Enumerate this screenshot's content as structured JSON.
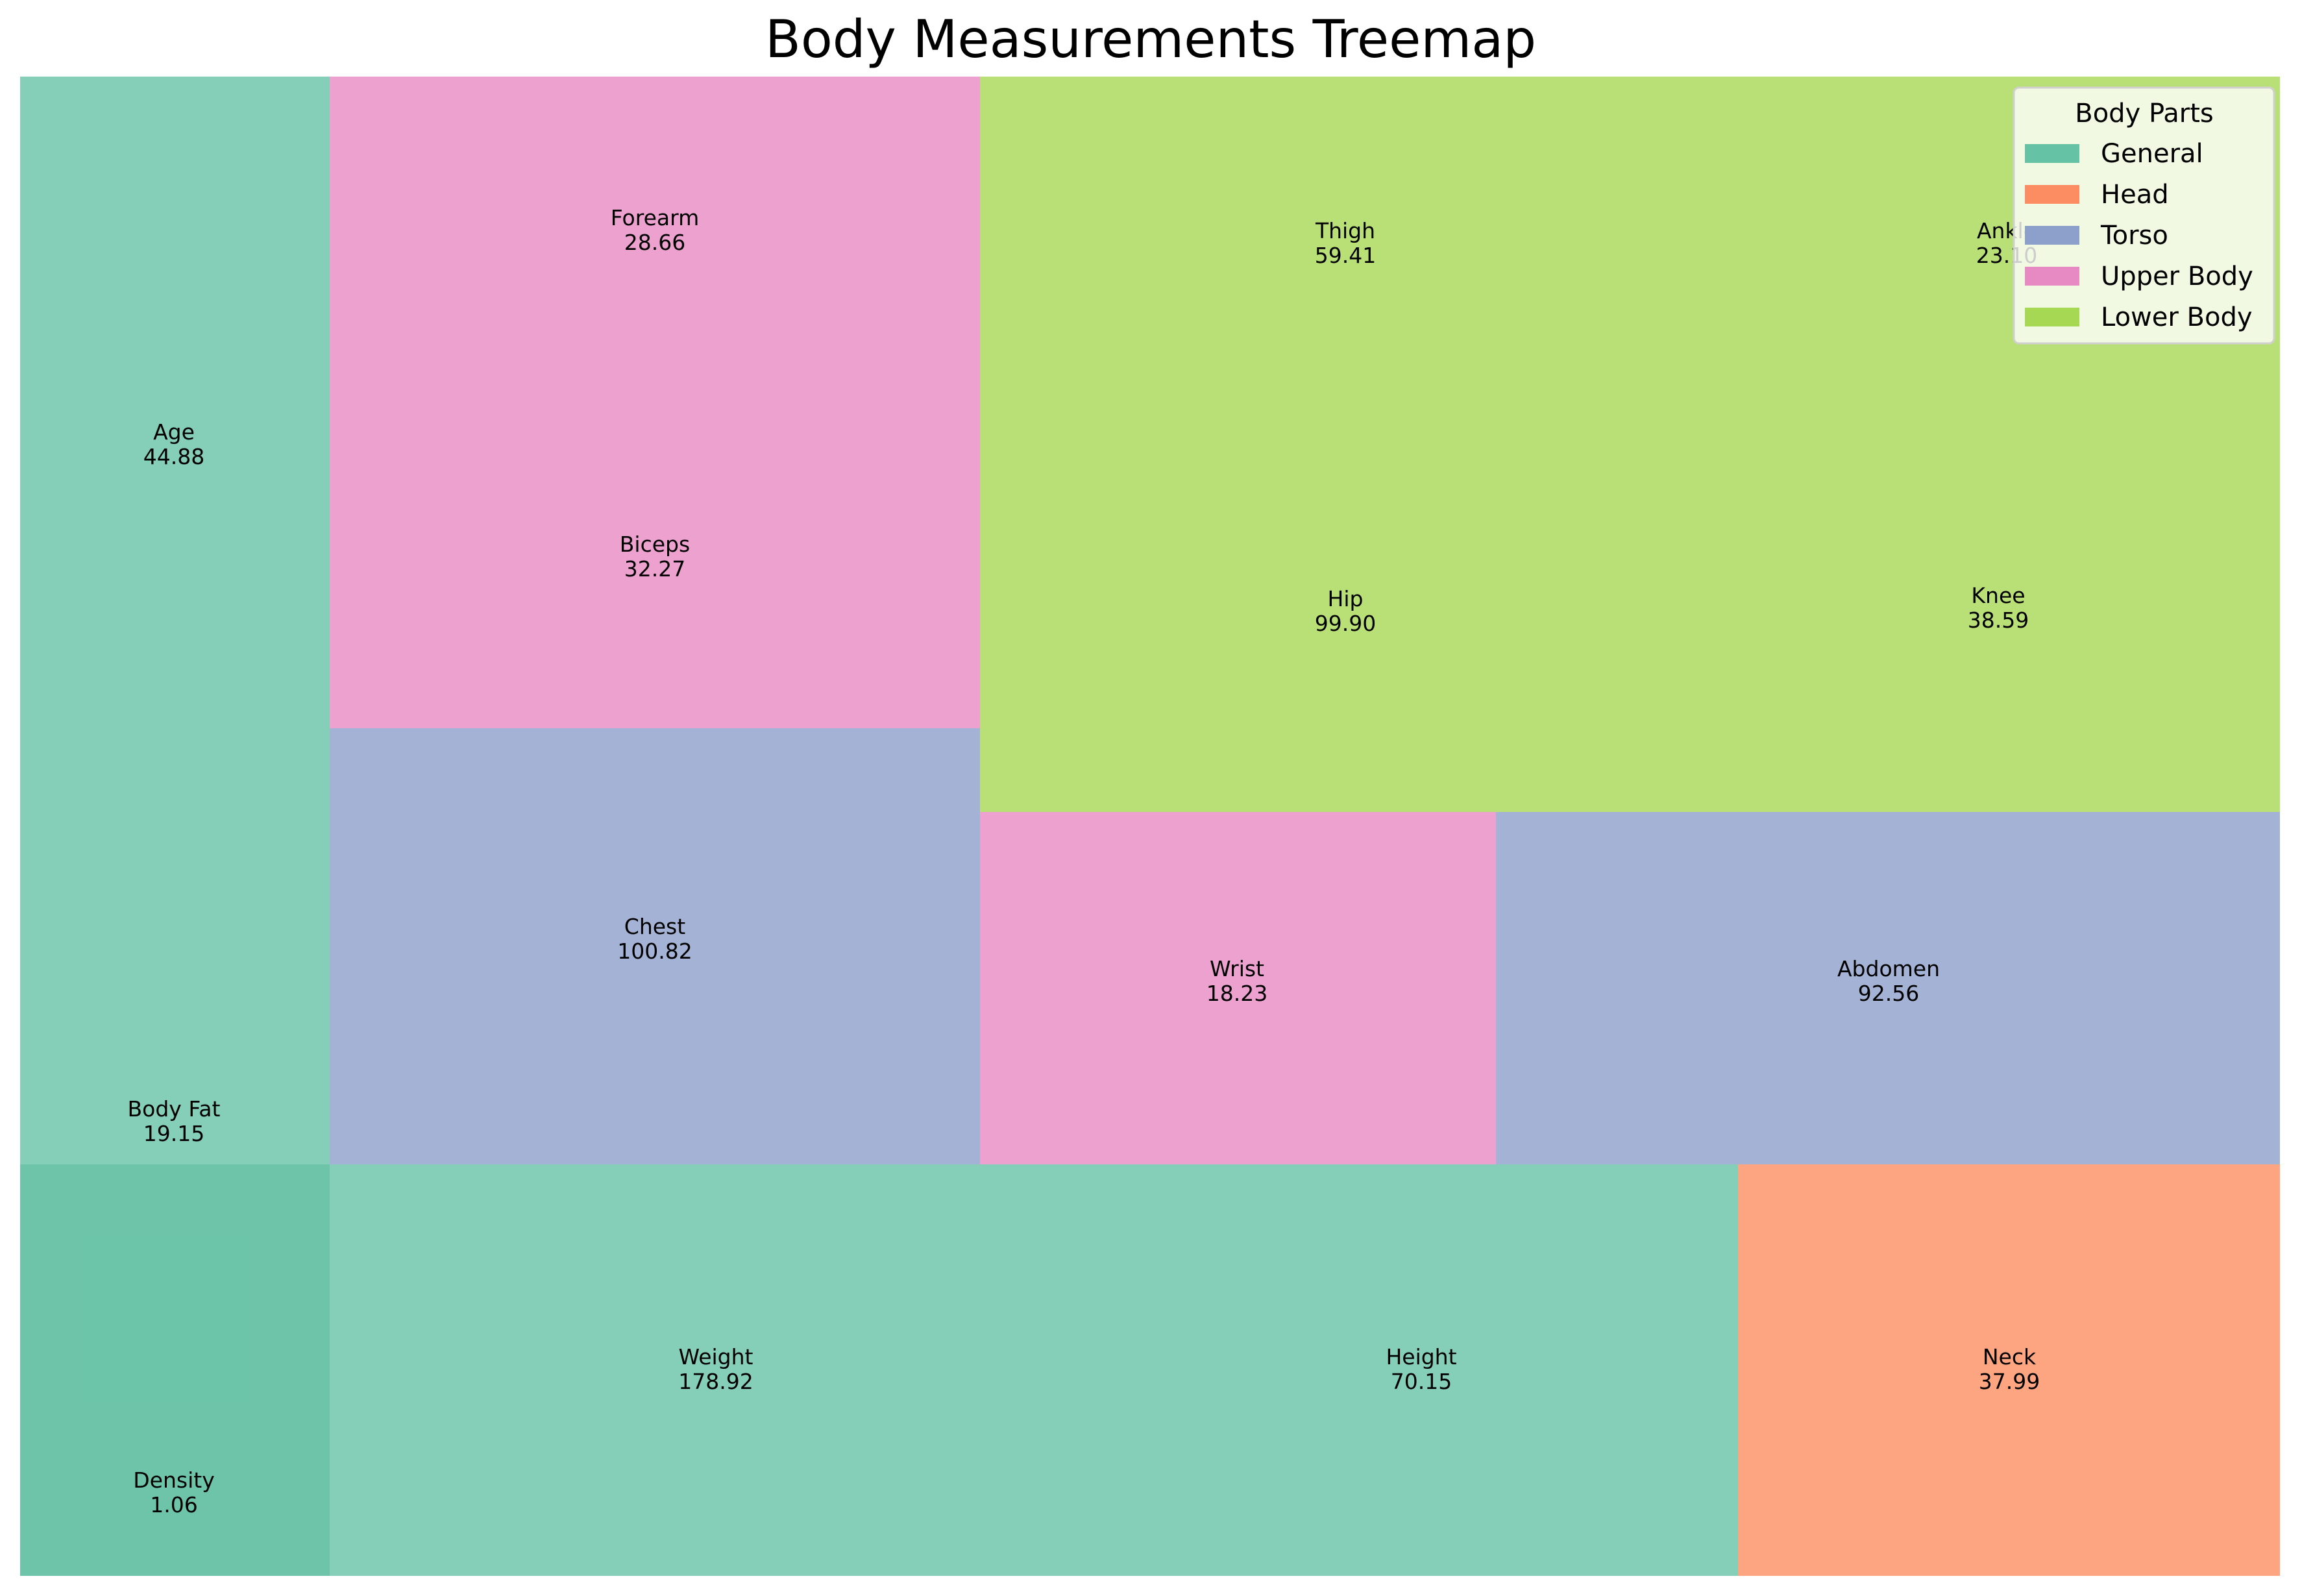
{
  "chart_data": {
    "type": "treemap",
    "title": "Body Measurements Treemap",
    "legend": {
      "title": "Body Parts",
      "placement": "top-right",
      "entries": [
        {
          "name": "General",
          "color": "#66c2a5"
        },
        {
          "name": "Head",
          "color": "#fc8d62"
        },
        {
          "name": "Torso",
          "color": "#8da0cb"
        },
        {
          "name": "Upper Body",
          "color": "#e78ac3"
        },
        {
          "name": "Lower Body",
          "color": "#a6d854"
        }
      ]
    },
    "items": [
      {
        "label": "Age",
        "value": "44.88",
        "group": "General"
      },
      {
        "label": "Body Fat",
        "value": "19.15",
        "group": "General"
      },
      {
        "label": "Density",
        "value": "1.06",
        "group": "General"
      },
      {
        "label": "Forearm",
        "value": "28.66",
        "group": "Upper Body"
      },
      {
        "label": "Biceps",
        "value": "32.27",
        "group": "Upper Body"
      },
      {
        "label": "Chest",
        "value": "100.82",
        "group": "Torso"
      },
      {
        "label": "Thigh",
        "value": "59.41",
        "group": "Lower Body"
      },
      {
        "label": "Ankle",
        "value": "23.10",
        "group": "Lower Body"
      },
      {
        "label": "Hip",
        "value": "99.90",
        "group": "Lower Body"
      },
      {
        "label": "Knee",
        "value": "38.59",
        "group": "Lower Body"
      },
      {
        "label": "Wrist",
        "value": "18.23",
        "group": "Upper Body"
      },
      {
        "label": "Abdomen",
        "value": "92.56",
        "group": "Torso"
      },
      {
        "label": "Weight",
        "value": "178.92",
        "group": "General"
      },
      {
        "label": "Height",
        "value": "70.15",
        "group": "General"
      },
      {
        "label": "Neck",
        "value": "37.99",
        "group": "Head"
      }
    ]
  }
}
